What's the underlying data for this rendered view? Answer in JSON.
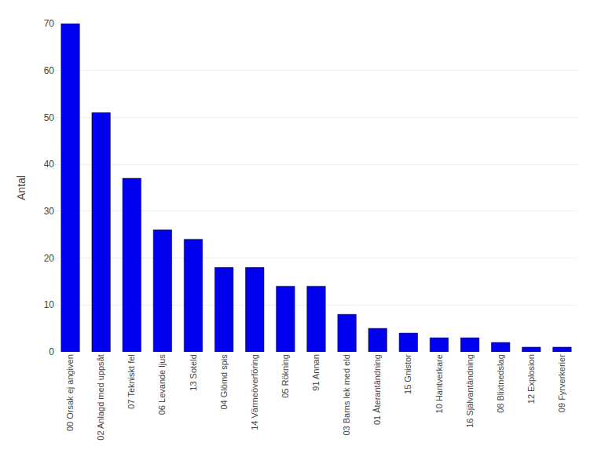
{
  "chart_data": {
    "type": "bar",
    "ylabel": "Antal",
    "categories": [
      "00 Orsak ej angiven",
      "02 Anlagd med uppsåt",
      "07 Tekniskt fel",
      "06 Levande ljus",
      "13 Soteld",
      "04 Glömd spis",
      "14 Värmeöverföring",
      "05 Rökning",
      "91 Annan",
      "03 Barns lek med eld",
      "01 Återantändning",
      "15 Gnistor",
      "10 Hantverkare",
      "16 Självantändning",
      "08 Blixtnedslag",
      "12 Explosion",
      "09 Fyrverkerier"
    ],
    "values": [
      70,
      51,
      37,
      26,
      24,
      18,
      18,
      14,
      14,
      8,
      5,
      4,
      3,
      3,
      2,
      1,
      1
    ],
    "color": "#0000ee",
    "ylim": [
      0,
      70
    ],
    "yticks": [
      0,
      10,
      20,
      30,
      40,
      50,
      60,
      70
    ],
    "grid": true
  }
}
